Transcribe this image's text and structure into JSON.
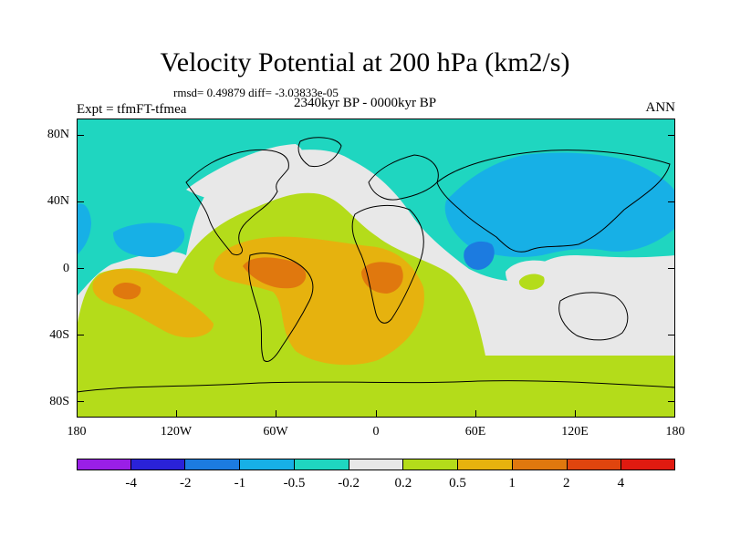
{
  "title": "Velocity Potential at 200 hPa (km2/s)",
  "stats": "rmsd= 0.49879 diff= -3.03833e-05",
  "expt": "Expt = tfmFT-tfmea",
  "period": "2340kyr BP - 0000kyr BP",
  "season": "ANN",
  "lat_labels": [
    "80N",
    "40N",
    "0",
    "40S",
    "80S"
  ],
  "lon_labels": [
    "180",
    "120W",
    "60W",
    "0",
    "60E",
    "120E",
    "180"
  ],
  "colorbar": {
    "colors": [
      "#9a1fe6",
      "#2a22d8",
      "#1c7be0",
      "#17b0e6",
      "#1fd6c0",
      "#e8e8e8",
      "#b4dc1a",
      "#e6b20e",
      "#e0780e",
      "#e0450e",
      "#e01a10"
    ],
    "labels": [
      "-4",
      "-2",
      "-1",
      "-0.5",
      "-0.2",
      "0.2",
      "0.5",
      "1",
      "2",
      "4"
    ]
  },
  "map_colors": {
    "ocean_bg": "#1fd6c0",
    "near_zero": "#e8e8e8",
    "pos_weak": "#b4dc1a",
    "pos_mid": "#e6b20e",
    "pos_strong": "#e0780e",
    "neg_weak": "#17b0e6",
    "neg_mid": "#1c7be0"
  }
}
